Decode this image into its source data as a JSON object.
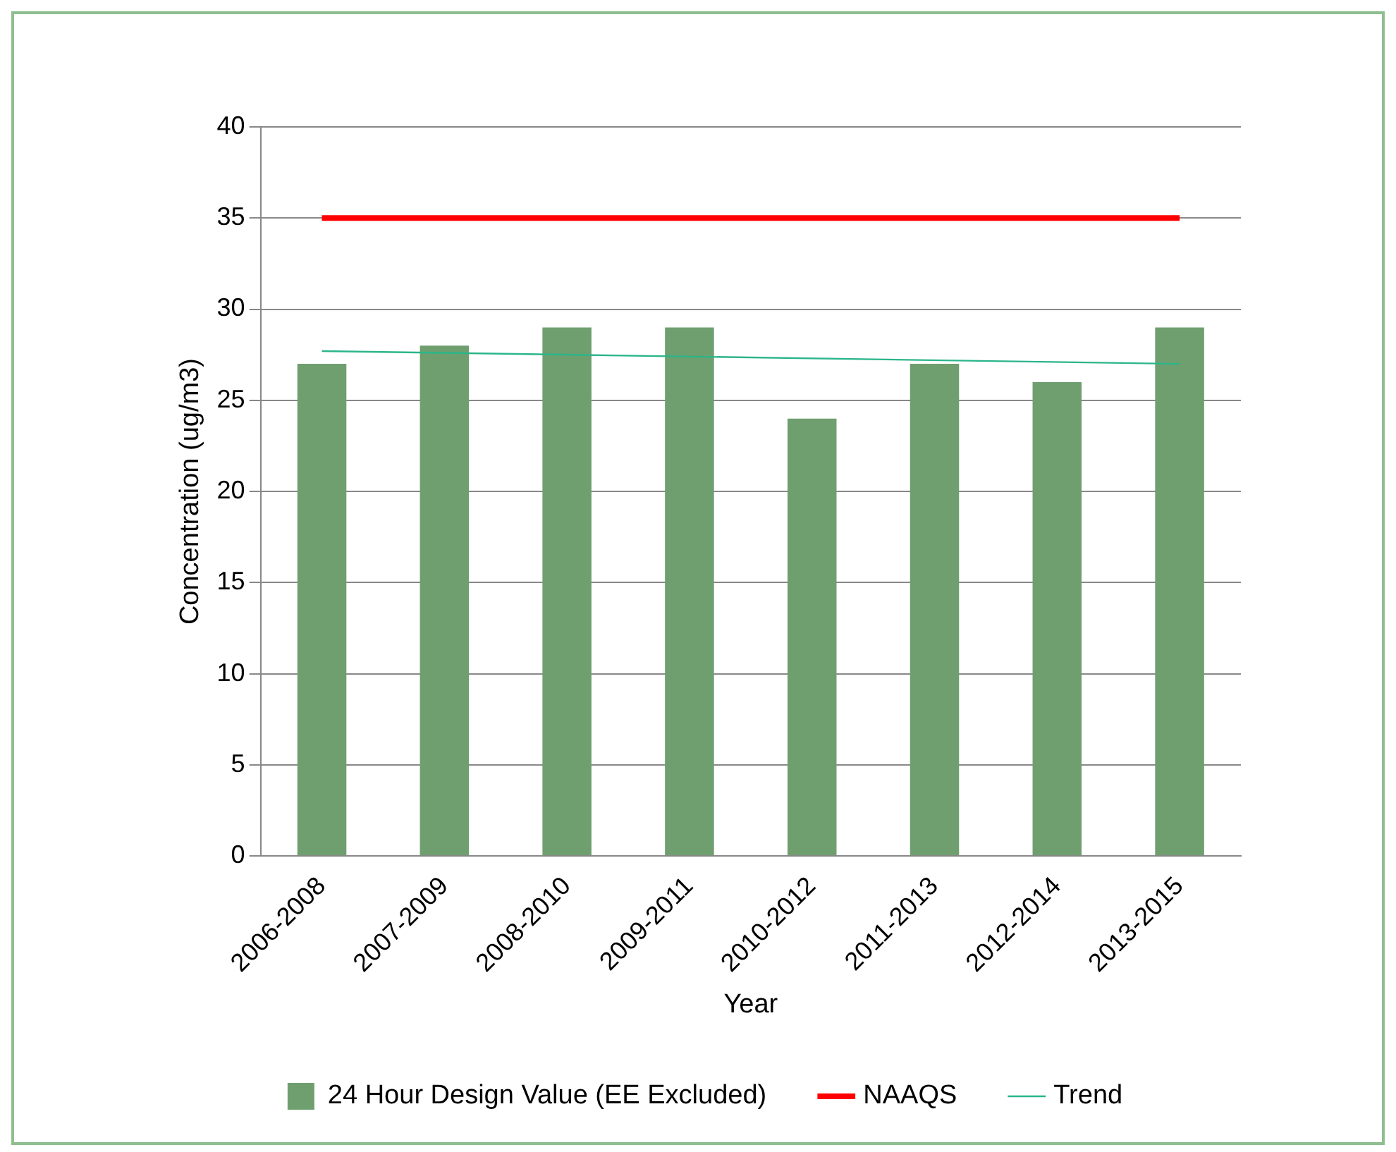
{
  "chart_data": {
    "type": "bar",
    "xlabel": "Year",
    "ylabel": "Concentration (ug/m3)",
    "categories": [
      "2006-2008",
      "2007-2009",
      "2008-2010",
      "2009-2011",
      "2010-2012",
      "2011-2013",
      "2012-2014",
      "2013-2015"
    ],
    "series": [
      {
        "name": "24 Hour Design Value (EE Excluded)",
        "color": "#6f9f6f",
        "values": [
          27,
          28,
          29,
          29,
          24,
          27,
          26,
          29
        ]
      },
      {
        "name": "NAAQS",
        "type": "line",
        "color": "#ff0000",
        "values": [
          35,
          35,
          35,
          35,
          35,
          35,
          35,
          35
        ]
      },
      {
        "name": "Trend",
        "type": "line",
        "color": "#2bb58a",
        "values": [
          27.7,
          null,
          null,
          null,
          null,
          null,
          null,
          27.0
        ]
      }
    ],
    "ylim": [
      0,
      40
    ],
    "yticks": [
      0,
      5,
      10,
      15,
      20,
      25,
      30,
      35,
      40
    ],
    "grid": "y",
    "legend": "bottom"
  }
}
